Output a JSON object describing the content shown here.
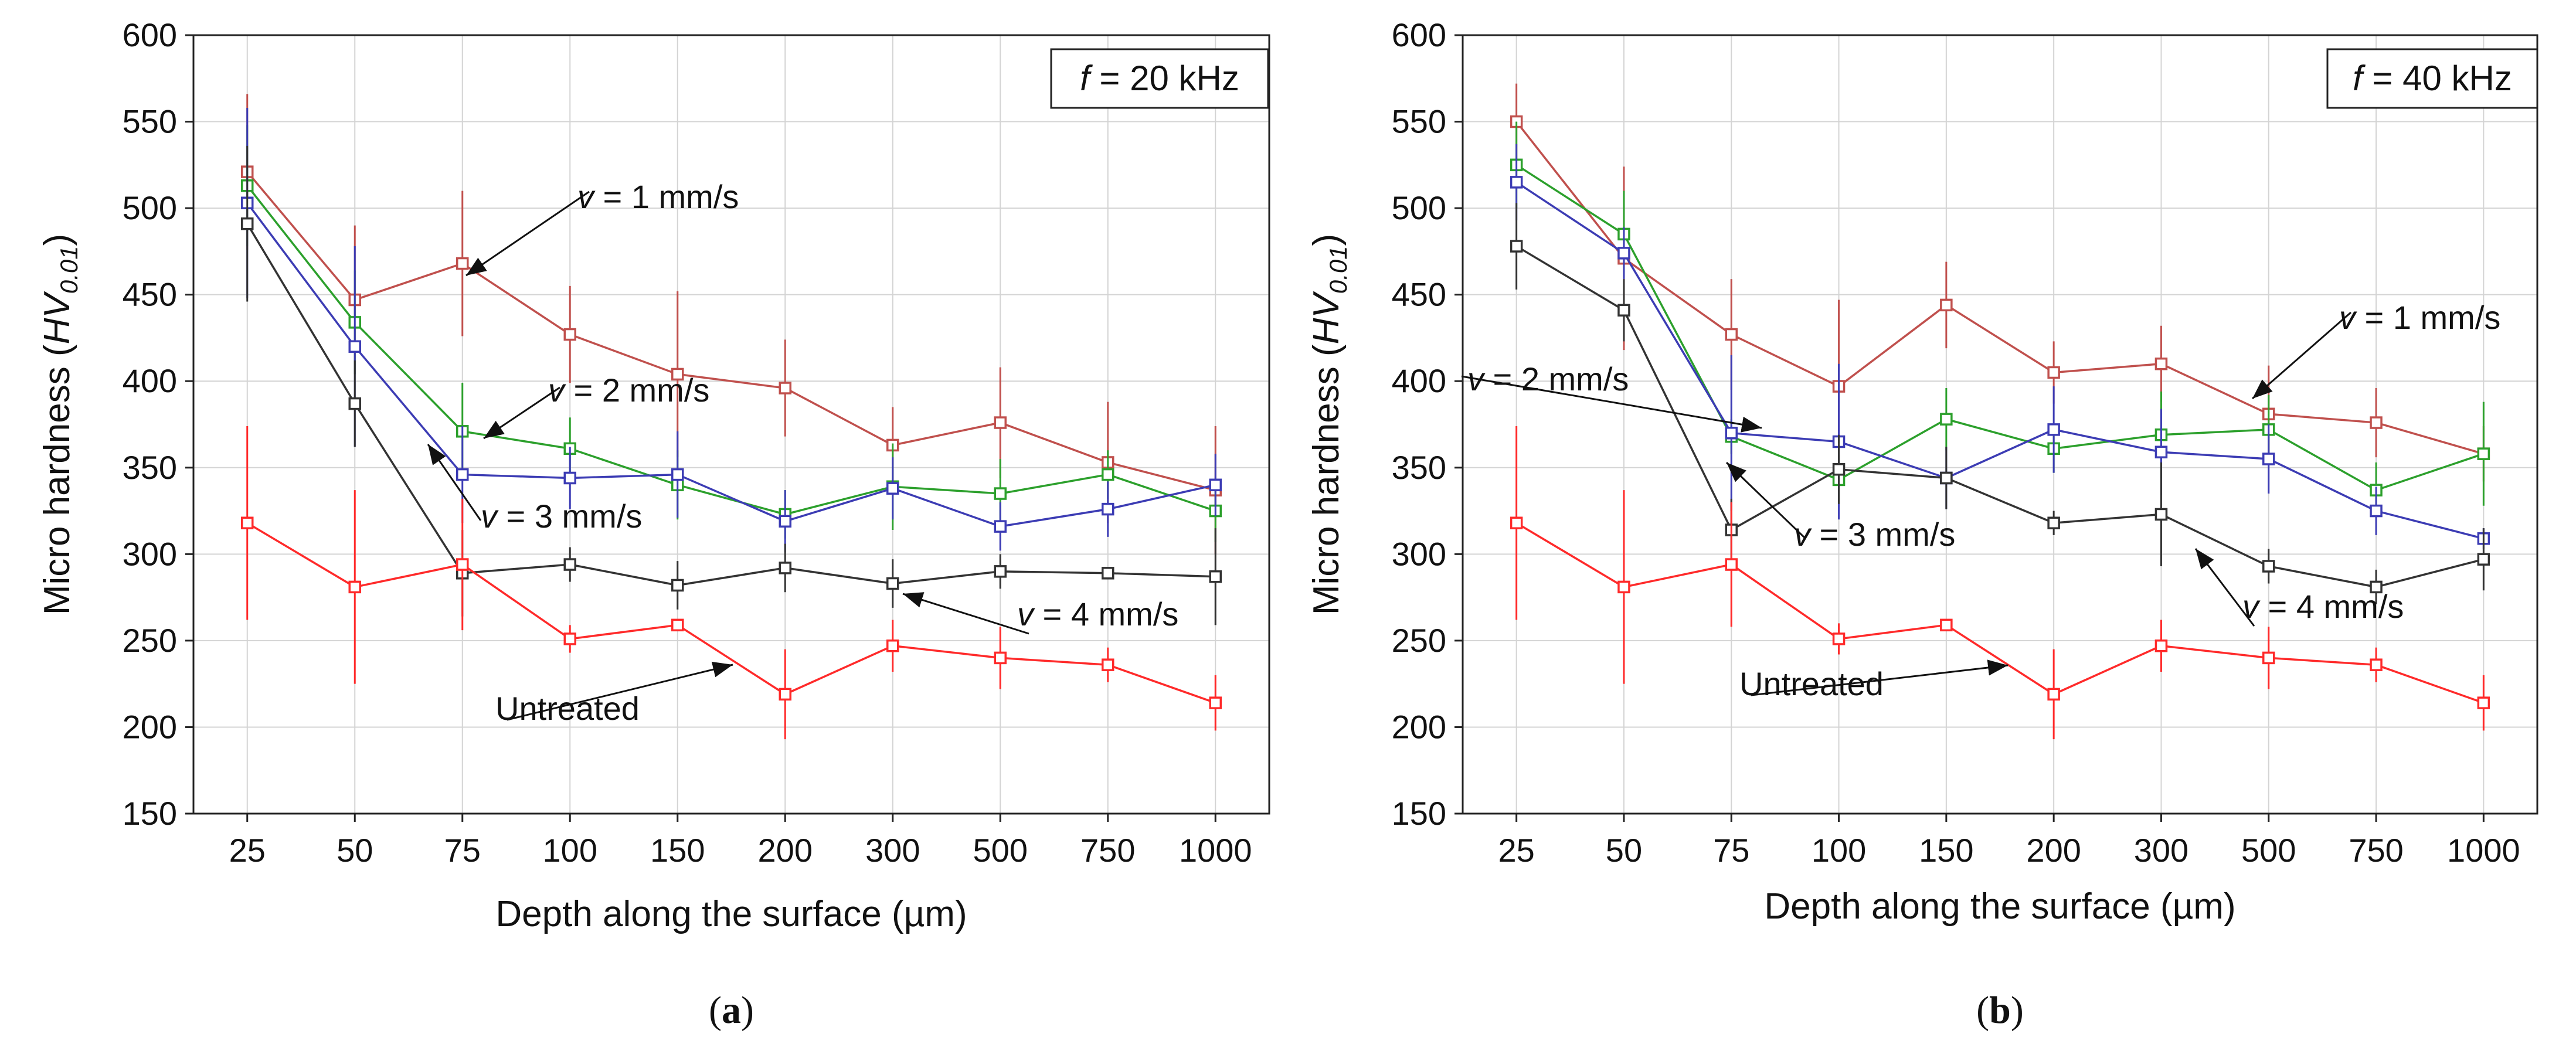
{
  "chart_data": [
    {
      "type": "line",
      "panel_caption_open": "(",
      "panel_caption_letter": "a",
      "panel_caption_close": ")",
      "freq_var": "f",
      "freq_value": " = 20 kHz",
      "xlabel": "Depth along the surface (µm)",
      "ylabel_prefix": "Micro hardness (",
      "ylabel_var": "HV",
      "ylabel_sub": "0.01",
      "ylabel_suffix": ")",
      "categories": [
        "25",
        "50",
        "75",
        "100",
        "150",
        "200",
        "300",
        "500",
        "750",
        "1000"
      ],
      "ylim": [
        150,
        600
      ],
      "yticks": [
        "150",
        "200",
        "250",
        "300",
        "350",
        "400",
        "450",
        "500",
        "550",
        "600"
      ],
      "series": [
        {
          "name": "v = 1 mm/s",
          "color": "#c0504d",
          "values": [
            521,
            447,
            468,
            427,
            404,
            396,
            363,
            376,
            353,
            337
          ],
          "err": [
            45,
            43,
            42,
            28,
            48,
            28,
            22,
            32,
            35,
            37
          ]
        },
        {
          "name": "v = 2 mm/s",
          "color": "#2ca02c",
          "values": [
            513,
            434,
            371,
            361,
            340,
            323,
            339,
            335,
            346,
            325
          ],
          "err": [
            35,
            30,
            28,
            18,
            20,
            14,
            25,
            20,
            14,
            18
          ]
        },
        {
          "name": "v = 3 mm/s",
          "color": "#3c3cb4",
          "values": [
            503,
            420,
            346,
            344,
            346,
            319,
            338,
            316,
            326,
            340
          ],
          "err": [
            55,
            58,
            28,
            18,
            25,
            18,
            18,
            14,
            16,
            18
          ]
        },
        {
          "name": "v = 4 mm/s",
          "color": "#333333",
          "values": [
            491,
            387,
            289,
            294,
            282,
            292,
            283,
            290,
            289,
            287
          ],
          "err": [
            45,
            25,
            25,
            10,
            14,
            14,
            14,
            10,
            3,
            28
          ]
        },
        {
          "name": "Untreated",
          "color": "#ff2a2a",
          "values": [
            318,
            281,
            294,
            251,
            259,
            219,
            247,
            240,
            236,
            214
          ],
          "err": [
            56,
            56,
            38,
            8,
            3,
            26,
            15,
            18,
            10,
            16
          ]
        }
      ],
      "annotations": [
        {
          "series": 0,
          "v": "v",
          "rest": " = 1 mm/s"
        },
        {
          "series": 1,
          "v": "v",
          "rest": " = 2 mm/s"
        },
        {
          "series": 2,
          "v": "v",
          "rest": " = 3 mm/s"
        },
        {
          "series": 3,
          "v": "v",
          "rest": " = 4 mm/s"
        },
        {
          "series": 4,
          "v": "",
          "rest": "Untreated"
        }
      ]
    },
    {
      "type": "line",
      "panel_caption_open": "(",
      "panel_caption_letter": "b",
      "panel_caption_close": ")",
      "freq_var": "f",
      "freq_value": " = 40 kHz",
      "xlabel": "Depth along the surface (µm)",
      "ylabel_prefix": "Micro hardness (",
      "ylabel_var": "HV",
      "ylabel_sub": "0.01",
      "ylabel_suffix": ")",
      "categories": [
        "25",
        "50",
        "75",
        "100",
        "150",
        "200",
        "300",
        "500",
        "750",
        "1000"
      ],
      "ylim": [
        150,
        600
      ],
      "yticks": [
        "150",
        "200",
        "250",
        "300",
        "350",
        "400",
        "450",
        "500",
        "550",
        "600"
      ],
      "series": [
        {
          "name": "v = 1 mm/s",
          "color": "#c0504d",
          "values": [
            550,
            471,
            427,
            397,
            444,
            405,
            410,
            381,
            376,
            358
          ],
          "err": [
            22,
            53,
            32,
            50,
            25,
            18,
            22,
            28,
            20,
            16
          ]
        },
        {
          "name": "v = 2 mm/s",
          "color": "#2ca02c",
          "values": [
            525,
            485,
            368,
            343,
            378,
            361,
            369,
            372,
            337,
            358
          ],
          "err": [
            25,
            25,
            10,
            14,
            18,
            14,
            25,
            20,
            16,
            30
          ]
        },
        {
          "name": "v = 3 mm/s",
          "color": "#3c3cb4",
          "values": [
            515,
            474,
            370,
            365,
            344,
            372,
            359,
            355,
            325,
            309
          ],
          "err": [
            22,
            15,
            45,
            45,
            18,
            25,
            25,
            20,
            14,
            6
          ]
        },
        {
          "name": "v = 4 mm/s",
          "color": "#333333",
          "values": [
            478,
            441,
            314,
            349,
            344,
            318,
            323,
            293,
            281,
            297
          ],
          "err": [
            25,
            18,
            18,
            20,
            18,
            7,
            30,
            10,
            10,
            18
          ]
        },
        {
          "name": "Untreated",
          "color": "#ff2a2a",
          "values": [
            318,
            281,
            294,
            251,
            259,
            219,
            247,
            240,
            236,
            214
          ],
          "err": [
            56,
            56,
            36,
            9,
            3,
            26,
            15,
            18,
            10,
            16
          ]
        }
      ],
      "annotations": [
        {
          "series": 0,
          "v": "v",
          "rest": " = 1 mm/s"
        },
        {
          "series": 1,
          "v": "v",
          "rest": " = 2 mm/s"
        },
        {
          "series": 2,
          "v": "v",
          "rest": " = 3 mm/s"
        },
        {
          "series": 3,
          "v": "v",
          "rest": " = 4 mm/s"
        },
        {
          "series": 4,
          "v": "",
          "rest": "Untreated"
        }
      ]
    }
  ]
}
